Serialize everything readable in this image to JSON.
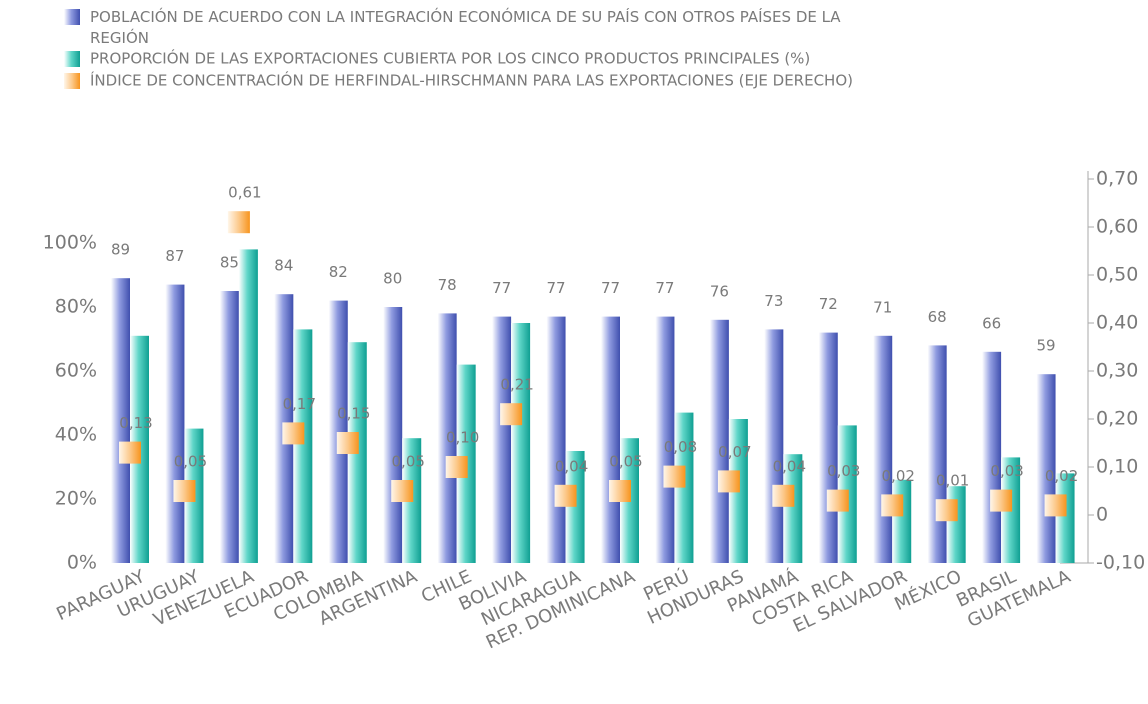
{
  "chart_data": {
    "type": "bar",
    "categories": [
      "PARAGUAY",
      "URUGUAY",
      "VENEZUELA",
      "ECUADOR",
      "COLOMBIA",
      "ARGENTINA",
      "CHILE",
      "BOLIVIA",
      "NICARAGUA",
      "REP. DOMINICANA",
      "PERÚ",
      "HONDURAS",
      "PANAMÁ",
      "COSTA RICA",
      "EL SALVADOR",
      "MÉXICO",
      "BRASIL",
      "GUATEMALA"
    ],
    "series": [
      {
        "name": "POBLACIÓN DE ACUERDO CON LA INTEGRACIÓN ECONÓMICA DE SU PAÍS CON OTROS PAÍSES DE LA REGIÓN",
        "color": "#4a5ab4",
        "values": [
          89,
          87,
          85,
          84,
          82,
          80,
          78,
          77,
          77,
          77,
          77,
          76,
          73,
          72,
          71,
          68,
          66,
          59
        ]
      },
      {
        "name": "PROPORCIÓN DE LAS EXPORTACIONES CUBIERTA POR LOS CINCO PRODUCTOS PRINCIPALES (%)",
        "color": "#14aa9c",
        "values": [
          71,
          42,
          98,
          73,
          69,
          39,
          62,
          75,
          35,
          39,
          47,
          45,
          34,
          43,
          26,
          24,
          33,
          28
        ]
      },
      {
        "name": "ÍNDICE DE CONCENTRACIÓN DE HERFINDAL-HIRSCHMANN PARA LAS EXPORTACIONES (EJE DERECHO)",
        "color": "#f7941d",
        "axis": "y2",
        "marker": "square",
        "values": [
          0.13,
          0.05,
          0.61,
          0.17,
          0.15,
          0.05,
          0.1,
          0.21,
          0.04,
          0.05,
          0.08,
          0.07,
          0.04,
          0.03,
          0.02,
          0.01,
          0.03,
          0.02
        ],
        "value_labels": [
          "0,13",
          "0,05",
          "0,61",
          "0,17",
          "0,15",
          "0,05",
          "0,10",
          "0,21",
          "0,04",
          "0,05",
          "0,08",
          "0,07",
          "0,04",
          "0,03",
          "0,02",
          "0,01",
          "0,03",
          "0,02"
        ]
      }
    ],
    "ylim": [
      0,
      100
    ],
    "yticks": [
      {
        "value": 0,
        "label": "0%"
      },
      {
        "value": 20,
        "label": "20%"
      },
      {
        "value": 40,
        "label": "40%"
      },
      {
        "value": 60,
        "label": "60%"
      },
      {
        "value": 80,
        "label": "80%"
      },
      {
        "value": 100,
        "label": "100%"
      }
    ],
    "y2lim": [
      -0.1,
      0.7
    ],
    "y2ticks": [
      {
        "value": -0.1,
        "label": "-0,10"
      },
      0,
      {
        "value": 0.1,
        "label": "0,10"
      },
      {
        "value": 0.2,
        "label": "0,20"
      },
      {
        "value": 0.3,
        "label": "0,30"
      },
      {
        "value": 0.4,
        "label": "0,40"
      },
      {
        "value": 0.5,
        "label": "0,50"
      },
      {
        "value": 0.6,
        "label": "0,60"
      },
      {
        "value": 0.7,
        "label": "0,70"
      }
    ],
    "legend": "top-left"
  }
}
